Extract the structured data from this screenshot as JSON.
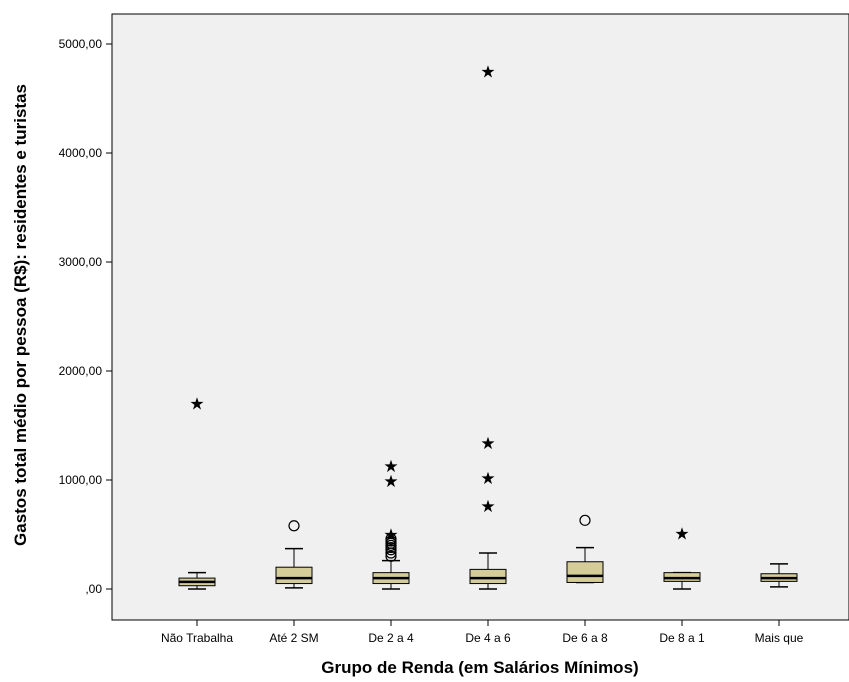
{
  "chart_data": {
    "type": "boxplot",
    "xlabel": "Grupo de Renda (em Salários Mínimos)",
    "ylabel": "Gastos total médio por pessoa (R$): residentes e turistas",
    "ylim": [
      -250,
      5300
    ],
    "yticks": [
      {
        "value": 0,
        "label": ",00"
      },
      {
        "value": 1000,
        "label": "1000,00"
      },
      {
        "value": 2000,
        "label": "2000,00"
      },
      {
        "value": 3000,
        "label": "3000,00"
      },
      {
        "value": 4000,
        "label": "4000,00"
      },
      {
        "value": 5000,
        "label": "5000,00"
      }
    ],
    "box_fill": "#d4cc99",
    "plot_background": "#f0f0f0",
    "groups": [
      {
        "name": "Não Trabalha",
        "min": 0,
        "q1": 30,
        "median": 65,
        "q3": 100,
        "max": 150,
        "outliers": [],
        "extremes": [
          1700
        ]
      },
      {
        "name": "Até 2 SM",
        "min": 10,
        "q1": 50,
        "median": 100,
        "q3": 200,
        "max": 370,
        "outliers": [
          580
        ],
        "extremes": []
      },
      {
        "name": "De 2 a 4",
        "min": 0,
        "q1": 50,
        "median": 100,
        "q3": 150,
        "max": 260,
        "outliers": [
          300,
          330,
          360,
          380,
          400,
          420,
          440,
          460
        ],
        "extremes": [
          500,
          990,
          1130
        ]
      },
      {
        "name": "De 4 a 6",
        "min": 0,
        "q1": 50,
        "median": 100,
        "q3": 180,
        "max": 330,
        "outliers": [],
        "extremes": [
          760,
          1020,
          1340,
          4750
        ]
      },
      {
        "name": "De 6 a 8",
        "min": 60,
        "q1": 60,
        "median": 120,
        "q3": 250,
        "max": 380,
        "outliers": [
          630
        ],
        "extremes": []
      },
      {
        "name": "De 8 a 1",
        "min": 0,
        "q1": 70,
        "median": 100,
        "q3": 150,
        "max": 150,
        "outliers": [],
        "extremes": [
          510
        ]
      },
      {
        "name": "Mais que",
        "min": 20,
        "q1": 70,
        "median": 100,
        "q3": 140,
        "max": 230,
        "outliers": [],
        "extremes": []
      }
    ]
  }
}
